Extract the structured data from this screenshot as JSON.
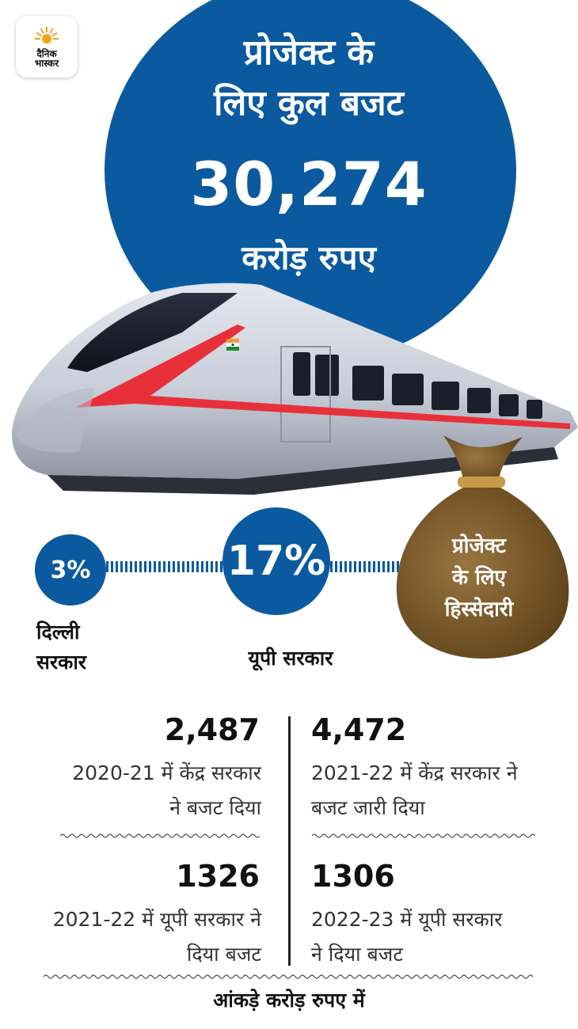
{
  "logo": {
    "text_line1": "दैनिक",
    "text_line2": "भास्कर"
  },
  "hero": {
    "title_line1": "प्रोजेक्ट के",
    "title_line2": "लिए कुल बजट",
    "amount": "30,274",
    "unit": "करोड़ रुपए"
  },
  "shares": {
    "delhi_percent": "3%",
    "delhi_label": "दिल्ली सरकार",
    "up_percent": "17%",
    "up_label": "यूपी सरकार",
    "bag_text_line1": "प्रोजेक्ट",
    "bag_text_line2": "के लिए",
    "bag_text_line3": "हिस्सेदारी"
  },
  "stats": [
    {
      "value": "2,487",
      "desc_line1": "2020-21 में केंद्र सरकार",
      "desc_line2": "ने बजट दिया"
    },
    {
      "value": "4,472",
      "desc_line1": "2021-22 में केंद्र सरकार ने",
      "desc_line2": "बजट जारी दिया"
    },
    {
      "value": "1326",
      "desc_line1": "2021-22 में यूपी सरकार ने",
      "desc_line2": "दिया बजट"
    },
    {
      "value": "1306",
      "desc_line1": "2022-23 में यूपी सरकार",
      "desc_line2": "ने दिया बजट"
    }
  ],
  "footer": "आंकड़े करोड़ रुपए में",
  "colors": {
    "brand_blue": "#0b5aa0",
    "bag_brown": "#7a5a2a",
    "train_red": "#e8303a"
  }
}
